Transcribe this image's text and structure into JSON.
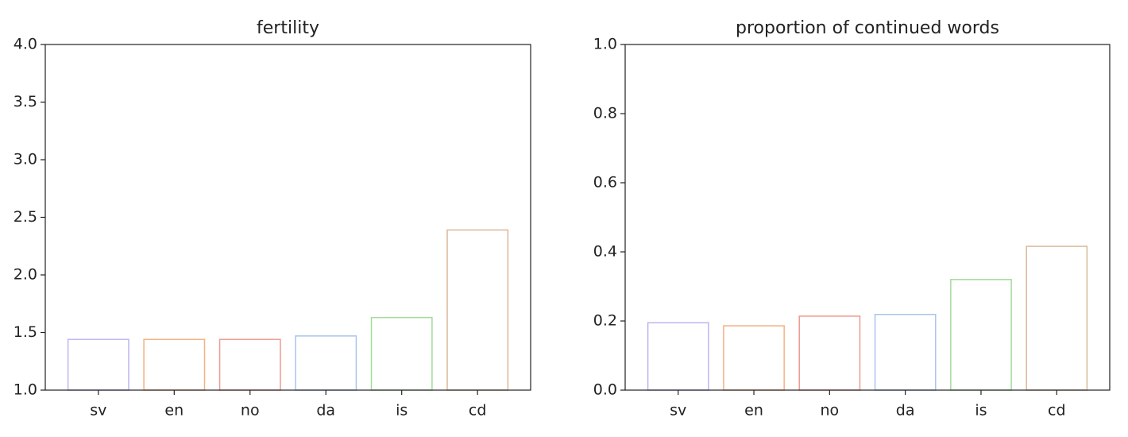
{
  "chart_data": [
    {
      "type": "bar",
      "title": "fertility",
      "categories": [
        "sv",
        "en",
        "no",
        "da",
        "is",
        "cd"
      ],
      "values": [
        1.44,
        1.44,
        1.44,
        1.47,
        1.63,
        2.39
      ],
      "colors": [
        "#bdb4f2",
        "#f4b183",
        "#ed9a8f",
        "#a9c5eb",
        "#a3dc9c",
        "#dbb896"
      ],
      "ylim": [
        1,
        4
      ],
      "yticks": [
        {
          "value": 1,
          "label": "1.0"
        },
        1.5,
        {
          "value": 2,
          "label": "2.0"
        },
        2.5,
        {
          "value": 3,
          "label": "3.0"
        },
        3.5,
        {
          "value": 4,
          "label": "4.0"
        }
      ]
    },
    {
      "type": "bar",
      "title": "proportion of continued words",
      "categories": [
        "sv",
        "en",
        "no",
        "da",
        "is",
        "cd"
      ],
      "values": [
        0.195,
        0.186,
        0.214,
        0.219,
        0.32,
        0.416
      ],
      "colors": [
        "#bdb4f2",
        "#f4b183",
        "#ed9a8f",
        "#a9c5eb",
        "#a3dc9c",
        "#dbb896"
      ],
      "ylim": [
        0,
        1
      ],
      "yticks": [
        {
          "value": 0,
          "label": "0.0"
        },
        0.2,
        0.4,
        0.6,
        0.8,
        {
          "value": 1,
          "label": "1.0"
        }
      ]
    }
  ]
}
